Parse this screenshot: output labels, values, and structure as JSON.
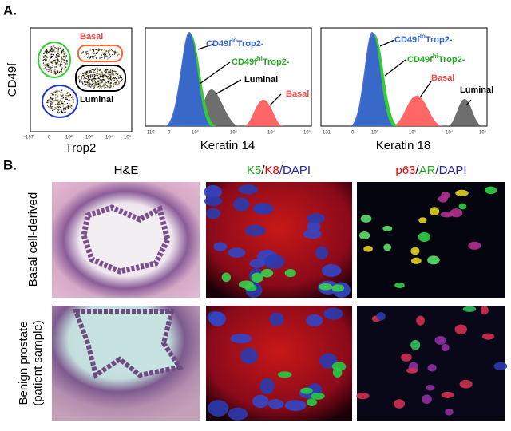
{
  "panel_a": {
    "label": "A.",
    "scatter": {
      "y_label": "CD49f",
      "x_label": "Trop2",
      "gates": [
        "Basal",
        "Luminal"
      ],
      "x_ticks": [
        "-197",
        "0",
        "10²",
        "10³",
        "10⁴",
        "10⁵"
      ]
    },
    "histograms": [
      {
        "x_label": "Keratin 14",
        "x_ticks": [
          "-119",
          "0",
          "10²",
          "10³",
          "10⁴",
          "10⁵"
        ],
        "labels": [
          {
            "text": "CD49f",
            "sup": "lo",
            "suffix": "Trop2-"
          },
          {
            "text": "CD49f",
            "sup": "hi",
            "suffix": "Trop2-"
          },
          {
            "text": "Luminal"
          },
          {
            "text": "Basal"
          }
        ]
      },
      {
        "x_label": "Keratin 18",
        "x_ticks": [
          "-131",
          "0",
          "10²",
          "10³",
          "10⁴",
          "10⁵"
        ],
        "labels": [
          {
            "text": "CD49f",
            "sup": "lo",
            "suffix": "Trop2-"
          },
          {
            "text": "CD49f",
            "sup": "hi",
            "suffix": "Trop2-"
          },
          {
            "text": "Basal"
          },
          {
            "text": "Luminal"
          }
        ]
      }
    ]
  },
  "panel_b": {
    "label": "B.",
    "columns": [
      {
        "parts": [
          "H&E"
        ]
      },
      {
        "parts": [
          "K5",
          "/",
          "K8",
          "/DAPI"
        ]
      },
      {
        "parts": [
          "p63",
          "/",
          "AR",
          "/DAPI"
        ]
      }
    ],
    "rows": [
      {
        "lines": [
          "Basal cell-derived"
        ]
      },
      {
        "lines": [
          "Benign prostate",
          "(patient sample)"
        ]
      }
    ]
  }
}
